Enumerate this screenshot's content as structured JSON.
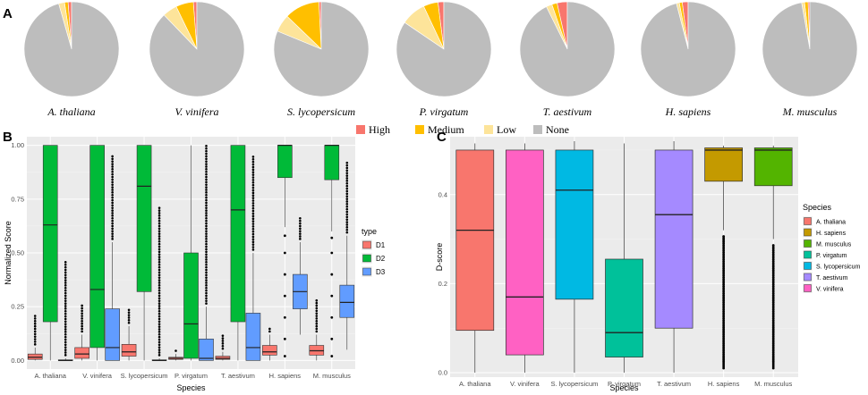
{
  "chart_data": [
    {
      "panel": "A",
      "type": "pie",
      "legend": {
        "entries": [
          "High",
          "Medium",
          "Low",
          "None"
        ],
        "placement": "bottom"
      },
      "colors": {
        "High": "#f8766d",
        "Medium": "#ffbf00",
        "Low": "#fde49a",
        "None": "#bdbdbd"
      },
      "pies": [
        {
          "species": "A. thaliana",
          "slices": {
            "High": 0.012,
            "Medium": 0.012,
            "Low": 0.02,
            "None": 0.956
          }
        },
        {
          "species": "V. vinifera",
          "slices": {
            "High": 0.012,
            "Medium": 0.06,
            "Low": 0.05,
            "None": 0.878
          }
        },
        {
          "species": "S. lycopersicum",
          "slices": {
            "High": 0.008,
            "Medium": 0.12,
            "Low": 0.06,
            "None": 0.812
          }
        },
        {
          "species": "P. virgatum",
          "slices": {
            "High": 0.02,
            "Medium": 0.05,
            "Low": 0.085,
            "None": 0.845
          }
        },
        {
          "species": "T. aestivum",
          "slices": {
            "High": 0.035,
            "Medium": 0.018,
            "Low": 0.02,
            "None": 0.927
          }
        },
        {
          "species": "H. sapiens",
          "slices": {
            "High": 0.02,
            "Medium": 0.01,
            "Low": 0.01,
            "None": 0.96
          }
        },
        {
          "species": "M. musculus",
          "slices": {
            "High": 0.006,
            "Medium": 0.012,
            "Low": 0.01,
            "None": 0.972
          }
        }
      ]
    },
    {
      "panel": "B",
      "type": "box",
      "xlabel": "Species",
      "ylabel": "Normalized Score",
      "ylim": [
        0,
        1
      ],
      "yticks": [
        "0.00",
        "0.25",
        "0.50",
        "0.75",
        "1.00"
      ],
      "grid": true,
      "categories": [
        "A. thaliana",
        "V. vinifera",
        "S. lycopersicum",
        "P. virgatum",
        "T. aestivum",
        "H. sapiens",
        "M. musculus"
      ],
      "legend": {
        "title": "type",
        "entries": [
          "D1",
          "D2",
          "D3"
        ],
        "placement": "right"
      },
      "colors": {
        "D1": "#f8766d",
        "D2": "#00ba38",
        "D3": "#619cff"
      },
      "series": [
        {
          "name": "D1",
          "boxes": [
            {
              "lo": 0,
              "q1": 0.005,
              "med": 0.015,
              "q3": 0.03,
              "hi": 0.06,
              "out": [
                0.08,
                0.12,
                0.16,
                0.21
              ]
            },
            {
              "lo": 0,
              "q1": 0.01,
              "med": 0.03,
              "q3": 0.06,
              "hi": 0.12,
              "out": [
                0.15,
                0.2,
                0.26
              ]
            },
            {
              "lo": 0,
              "q1": 0.02,
              "med": 0.04,
              "q3": 0.075,
              "hi": 0.16,
              "out": [
                0.19,
                0.24
              ]
            },
            {
              "lo": 0,
              "q1": 0.005,
              "med": 0.01,
              "q3": 0.015,
              "hi": 0.03,
              "out": [
                0.04,
                0.05
              ]
            },
            {
              "lo": 0,
              "q1": 0.005,
              "med": 0.01,
              "q3": 0.02,
              "hi": 0.04,
              "out": [
                0.06,
                0.09,
                0.12
              ]
            },
            {
              "lo": 0,
              "q1": 0.025,
              "med": 0.04,
              "q3": 0.07,
              "hi": 0.12,
              "out": [
                0.15
              ]
            },
            {
              "lo": 0,
              "q1": 0.025,
              "med": 0.045,
              "q3": 0.07,
              "hi": 0.12,
              "out": [
                0.14,
                0.18,
                0.24,
                0.29
              ]
            }
          ]
        },
        {
          "name": "D2",
          "boxes": [
            {
              "lo": 0,
              "q1": 0.18,
              "med": 0.63,
              "q3": 1.0,
              "hi": 1.0,
              "out": []
            },
            {
              "lo": 0,
              "q1": 0.06,
              "med": 0.33,
              "q3": 1.0,
              "hi": 1.0,
              "out": []
            },
            {
              "lo": 0,
              "q1": 0.32,
              "med": 0.81,
              "q3": 1.0,
              "hi": 1.0,
              "out": []
            },
            {
              "lo": 0,
              "q1": 0.01,
              "med": 0.17,
              "q3": 0.5,
              "hi": 1.0,
              "out": []
            },
            {
              "lo": 0,
              "q1": 0.18,
              "med": 0.7,
              "q3": 1.0,
              "hi": 1.0,
              "out": []
            },
            {
              "lo": 0.62,
              "q1": 0.85,
              "med": 1.0,
              "q3": 1.0,
              "hi": 1.0,
              "out": [
                0.02,
                0.1,
                0.2,
                0.3,
                0.4,
                0.5,
                0.58
              ]
            },
            {
              "lo": 0.6,
              "q1": 0.84,
              "med": 1.0,
              "q3": 1.0,
              "hi": 1.0,
              "out": [
                0.02,
                0.1,
                0.2,
                0.3,
                0.4,
                0.5,
                0.57
              ]
            }
          ]
        },
        {
          "name": "D3",
          "boxes": [
            {
              "lo": 0,
              "q1": 0,
              "med": 0,
              "q3": 0.003,
              "hi": 0.01,
              "out": [
                0.1,
                0.18,
                0.25,
                0.32,
                0.38,
                0.42,
                0.46
              ]
            },
            {
              "lo": 0,
              "q1": 0,
              "med": 0.06,
              "q3": 0.24,
              "hi": 0.55,
              "out": [
                0.6,
                0.68,
                0.75,
                0.82,
                0.9,
                0.96
              ]
            },
            {
              "lo": 0,
              "q1": 0,
              "med": 0,
              "q3": 0.003,
              "hi": 0.01,
              "out": [
                0.1,
                0.2,
                0.3,
                0.4,
                0.5,
                0.6,
                0.68,
                0.72
              ]
            },
            {
              "lo": 0,
              "q1": 0,
              "med": 0.01,
              "q3": 0.1,
              "hi": 0.25,
              "out": [
                0.3,
                0.4,
                0.5,
                0.6,
                0.7,
                0.8,
                0.9,
                1.0
              ]
            },
            {
              "lo": 0,
              "q1": 0,
              "med": 0.06,
              "q3": 0.22,
              "hi": 0.5,
              "out": [
                0.55,
                0.65,
                0.75,
                0.85,
                0.95
              ]
            },
            {
              "lo": 0.12,
              "q1": 0.24,
              "med": 0.32,
              "q3": 0.4,
              "hi": 0.55,
              "out": [
                0.6,
                0.64,
                0.67
              ]
            },
            {
              "lo": 0.05,
              "q1": 0.2,
              "med": 0.27,
              "q3": 0.35,
              "hi": 0.58,
              "out": [
                0.62,
                0.7,
                0.78,
                0.86,
                0.92
              ]
            }
          ]
        }
      ]
    },
    {
      "panel": "C",
      "type": "box",
      "xlabel": "Species",
      "ylabel": "D-score",
      "ylim": [
        -0.01,
        0.53
      ],
      "yticks": [
        "0.0",
        "0.2",
        "0.4"
      ],
      "grid": true,
      "categories": [
        "A. thaliana",
        "V. vinifera",
        "S. lycopersicum",
        "P. virgatum",
        "T. aestivum",
        "H. sapiens",
        "M. musculus"
      ],
      "legend": {
        "title": "Species",
        "entries": [
          "A. thaliana",
          "H. sapiens",
          "M. musculus",
          "P. virgatum",
          "S. lycopersicum",
          "T. aestivum",
          "V. vinifera"
        ],
        "placement": "right"
      },
      "colors": {
        "A. thaliana": "#f8766d",
        "V. vinifera": "#ff61c3",
        "S. lycopersicum": "#00b9e3",
        "P. virgatum": "#00c19a",
        "T. aestivum": "#a58aff",
        "H. sapiens": "#c49a00",
        "M. musculus": "#53b400"
      },
      "boxes": [
        {
          "lo": 0.0,
          "q1": 0.095,
          "med": 0.32,
          "q3": 0.5,
          "hi": 0.515,
          "out": []
        },
        {
          "lo": 0.0,
          "q1": 0.04,
          "med": 0.17,
          "q3": 0.5,
          "hi": 0.515,
          "out": []
        },
        {
          "lo": 0.0,
          "q1": 0.165,
          "med": 0.41,
          "q3": 0.5,
          "hi": 0.52,
          "out": []
        },
        {
          "lo": 0.0,
          "q1": 0.035,
          "med": 0.09,
          "q3": 0.255,
          "hi": 0.515,
          "out": []
        },
        {
          "lo": 0.0,
          "q1": 0.1,
          "med": 0.355,
          "q3": 0.5,
          "hi": 0.52,
          "out": []
        },
        {
          "lo": 0.32,
          "q1": 0.43,
          "med": 0.5,
          "q3": 0.505,
          "hi": 0.51,
          "out_range": [
            0.01,
            0.31
          ]
        },
        {
          "lo": 0.3,
          "q1": 0.42,
          "med": 0.5,
          "q3": 0.505,
          "hi": 0.51,
          "out_range": [
            0.01,
            0.29
          ]
        }
      ]
    }
  ],
  "panel_labels": [
    "A",
    "B",
    "C"
  ]
}
